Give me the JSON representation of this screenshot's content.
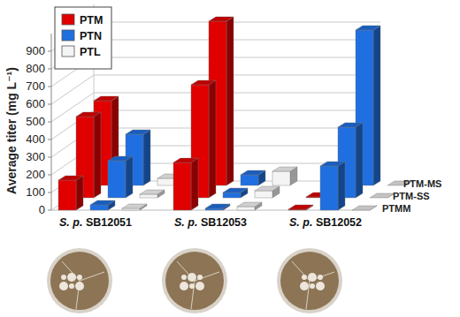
{
  "chart_data": {
    "type": "bar",
    "y_label": "Average titer (mg L⁻¹)",
    "categories": [
      "S. p. SB12051",
      "S. p. SB12053",
      "S. p. SB12052"
    ],
    "depth_categories": [
      "PTMM",
      "PTM-SS",
      "PTM-MS"
    ],
    "series": [
      {
        "name": "PTM",
        "color": "#e00000",
        "values": [
          [
            170,
            460,
            480
          ],
          [
            270,
            640,
            930
          ],
          [
            5,
            5,
            0
          ]
        ]
      },
      {
        "name": "PTN",
        "color": "#1f6fe0",
        "values": [
          [
            30,
            210,
            290
          ],
          [
            10,
            30,
            60
          ],
          [
            250,
            400,
            880
          ]
        ]
      },
      {
        "name": "PTL",
        "color": "#f4f4f4",
        "values": [
          [
            10,
            20,
            40
          ],
          [
            20,
            40,
            80
          ],
          [
            0,
            0,
            0
          ]
        ]
      }
    ],
    "ylim": [
      0,
      1000
    ],
    "yticks": [
      0,
      100,
      200,
      300,
      400,
      500,
      600,
      700,
      800,
      900
    ],
    "grid": true,
    "legend": "top-left"
  }
}
